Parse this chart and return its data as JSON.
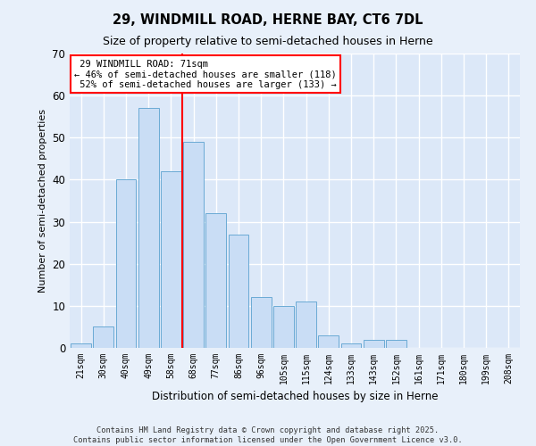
{
  "title_line1": "29, WINDMILL ROAD, HERNE BAY, CT6 7DL",
  "title_line2": "Size of property relative to semi-detached houses in Herne",
  "xlabel": "Distribution of semi-detached houses by size in Herne",
  "ylabel": "Number of semi-detached properties",
  "categories": [
    "21sqm",
    "30sqm",
    "40sqm",
    "49sqm",
    "58sqm",
    "68sqm",
    "77sqm",
    "86sqm",
    "96sqm",
    "105sqm",
    "115sqm",
    "124sqm",
    "133sqm",
    "143sqm",
    "152sqm",
    "161sqm",
    "171sqm",
    "180sqm",
    "199sqm",
    "208sqm"
  ],
  "values": [
    1,
    5,
    40,
    57,
    42,
    49,
    32,
    27,
    12,
    10,
    11,
    3,
    1,
    2,
    2,
    0,
    0,
    0,
    0,
    0
  ],
  "bar_color": "#c9ddf5",
  "bar_edge_color": "#6aaad4",
  "background_color": "#dce8f8",
  "grid_color": "#ffffff",
  "fig_background": "#e8f0fa",
  "ylim": [
    0,
    70
  ],
  "yticks": [
    0,
    10,
    20,
    30,
    40,
    50,
    60,
    70
  ],
  "property_label": "29 WINDMILL ROAD: 71sqm",
  "pct_smaller": 46,
  "count_smaller": 118,
  "pct_larger": 52,
  "count_larger": 133,
  "vline_position": 4.5,
  "footer_line1": "Contains HM Land Registry data © Crown copyright and database right 2025.",
  "footer_line2": "Contains public sector information licensed under the Open Government Licence v3.0."
}
